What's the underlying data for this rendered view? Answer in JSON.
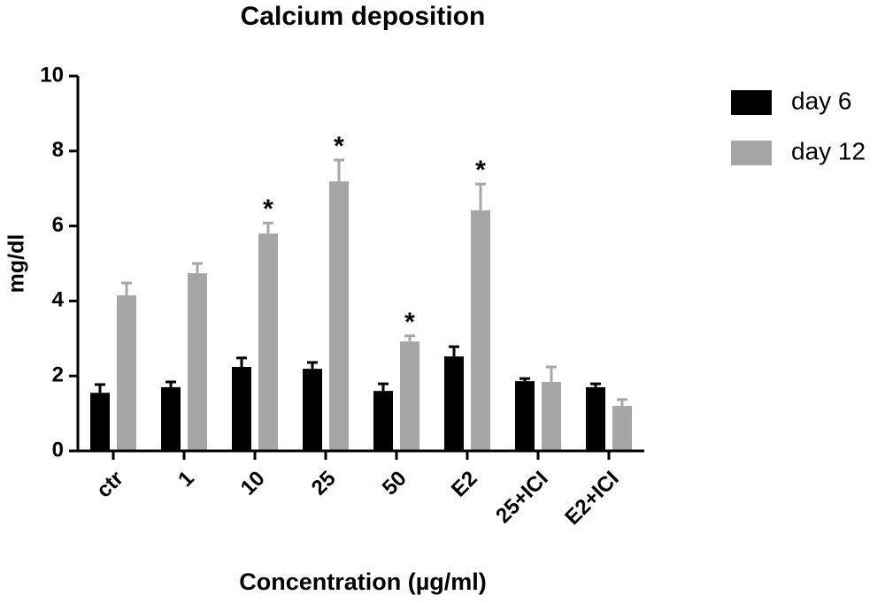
{
  "chart_data": {
    "type": "bar",
    "title": "Calcium deposition",
    "x_label": "Concentration (µg/ml)",
    "y_label": "mg/dl",
    "categories": [
      "ctr",
      "1",
      "10",
      "25",
      "50",
      "E2",
      "25+ICI",
      "E2+ICI"
    ],
    "series": [
      {
        "name": "day 6",
        "color": "#000000",
        "values": [
          1.55,
          1.7,
          2.24,
          2.19,
          1.6,
          2.52,
          1.86,
          1.7
        ],
        "errors": [
          0.22,
          0.14,
          0.24,
          0.17,
          0.19,
          0.26,
          0.07,
          0.09
        ]
      },
      {
        "name": "day 12",
        "color": "#a6a6a6",
        "values": [
          4.15,
          4.74,
          5.8,
          7.19,
          2.92,
          6.42,
          1.84,
          1.2
        ],
        "errors": [
          0.33,
          0.26,
          0.28,
          0.57,
          0.15,
          0.7,
          0.4,
          0.17
        ],
        "annotations": [
          null,
          null,
          "*",
          "*",
          "*",
          "*",
          null,
          null
        ]
      }
    ],
    "ylim": [
      0,
      10
    ],
    "yticks": [
      0,
      2,
      4,
      6,
      8,
      10
    ],
    "legend": "top-right"
  }
}
